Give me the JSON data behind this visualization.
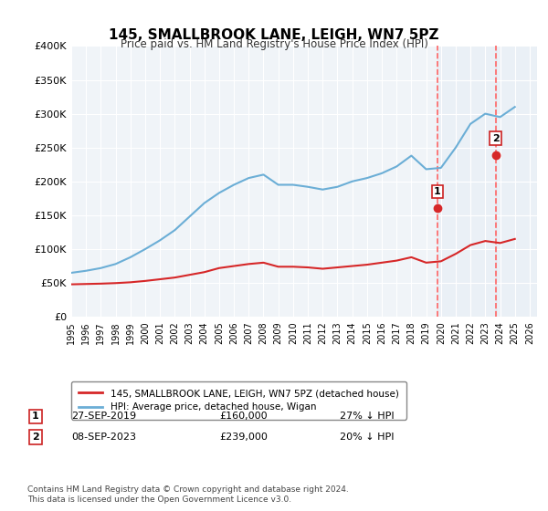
{
  "title": "145, SMALLBROOK LANE, LEIGH, WN7 5PZ",
  "subtitle": "Price paid vs. HM Land Registry's House Price Index (HPI)",
  "ylabel_ticks": [
    "£0",
    "£50K",
    "£100K",
    "£150K",
    "£200K",
    "£250K",
    "£300K",
    "£350K",
    "£400K"
  ],
  "ytick_values": [
    0,
    50000,
    100000,
    150000,
    200000,
    250000,
    300000,
    350000,
    400000
  ],
  "ylim": [
    0,
    400000
  ],
  "xlim_start": 1995.5,
  "xlim_end": 2026.5,
  "xtick_years": [
    1995,
    1996,
    1997,
    1998,
    1999,
    2000,
    2001,
    2002,
    2003,
    2004,
    2005,
    2006,
    2007,
    2008,
    2009,
    2010,
    2011,
    2012,
    2013,
    2014,
    2015,
    2016,
    2017,
    2018,
    2019,
    2020,
    2021,
    2022,
    2023,
    2024,
    2025,
    2026
  ],
  "hpi_color": "#6baed6",
  "price_color": "#d62728",
  "marker_color_1": "#d62728",
  "marker_color_2": "#d62728",
  "vline_color": "#ff6666",
  "vline_style": "--",
  "sale1_year": 2019.75,
  "sale1_price": 160000,
  "sale1_label": "1",
  "sale2_year": 2023.69,
  "sale2_price": 239000,
  "sale2_label": "2",
  "legend_line1": "145, SMALLBROOK LANE, LEIGH, WN7 5PZ (detached house)",
  "legend_line2": "HPI: Average price, detached house, Wigan",
  "table_row1": "1    27-SEP-2019         £160,000         27% ↓ HPI",
  "table_row2": "2    08-SEP-2023         £239,000         20% ↓ HPI",
  "footnote": "Contains HM Land Registry data © Crown copyright and database right 2024.\nThis data is licensed under the Open Government Licence v3.0.",
  "bg_color": "#ffffff",
  "plot_bg_color": "#f0f4f8",
  "shade_color_1": "#d0dff0",
  "shade_color_2": "#d0dff0",
  "hpi_x": [
    1995,
    1996,
    1997,
    1998,
    1999,
    2000,
    2001,
    2002,
    2003,
    2004,
    2005,
    2006,
    2007,
    2008,
    2009,
    2010,
    2011,
    2012,
    2013,
    2014,
    2015,
    2016,
    2017,
    2018,
    2019,
    2020,
    2021,
    2022,
    2023,
    2024,
    2025
  ],
  "hpi_y": [
    65000,
    68000,
    72000,
    78000,
    88000,
    100000,
    113000,
    128000,
    148000,
    168000,
    183000,
    195000,
    205000,
    210000,
    195000,
    195000,
    192000,
    188000,
    192000,
    200000,
    205000,
    212000,
    222000,
    238000,
    218000,
    220000,
    250000,
    285000,
    300000,
    295000,
    310000
  ],
  "price_x": [
    1995,
    1996,
    1997,
    1998,
    1999,
    2000,
    2001,
    2002,
    2003,
    2004,
    2005,
    2006,
    2007,
    2008,
    2009,
    2010,
    2011,
    2012,
    2013,
    2014,
    2015,
    2016,
    2017,
    2018,
    2019,
    2020,
    2021,
    2022,
    2023,
    2024,
    2025
  ],
  "price_y": [
    48000,
    48500,
    49000,
    49800,
    51000,
    53000,
    55500,
    58000,
    62000,
    66000,
    72000,
    75000,
    78000,
    80000,
    74000,
    74000,
    73000,
    71000,
    73000,
    75000,
    77000,
    80000,
    83000,
    88000,
    80000,
    82000,
    93000,
    106000,
    112000,
    109000,
    115000
  ]
}
